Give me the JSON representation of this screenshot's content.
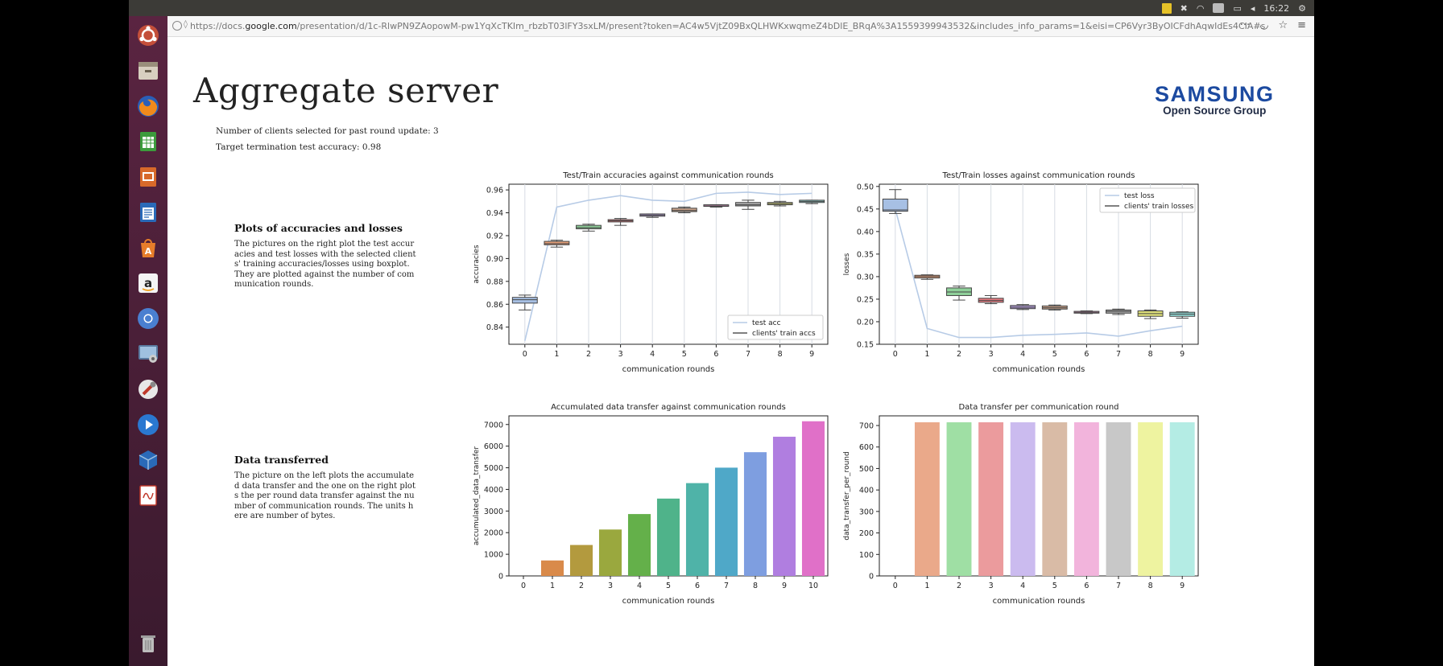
{
  "system": {
    "clock": "16:22"
  },
  "browser": {
    "url_prefix": "https://docs.",
    "url_domain": "google.com",
    "url_rest": "/presentation/d/1c-RlwPN9ZAopowM-pw1YqXcTKIm_rbzbT03lFY3sxLM/present?token=AC4w5VjtZ09BxQLHWKxwqmeZ4bDlE_BRqA%3A1559399943532&includes_info_params=1&eisi=CP6Vyr3ByOICFdhAqwIdEs4CIA#s"
  },
  "slide": {
    "title": "Aggregate server",
    "logo_brand": "SAMSUNG",
    "logo_sub": "Open Source Group",
    "info_line1": "Number of clients selected for past round update: 3",
    "info_line2": "Target termination test accuracy: 0.98",
    "section1_title": "Plots of accuracies and losses",
    "section1_body": [
      "The pictures on the right plot the test accur",
      "acies and test losses with the selected client",
      "s' training accuracies/losses using boxplot.",
      "They are plotted against the number of com",
      "munication rounds."
    ],
    "section2_title": "Data transferred",
    "section2_body": [
      "The picture on the left plots the accumulate",
      "d data transfer and the one on the right plot",
      "s the per round data transfer against the nu",
      "mber of communication rounds. The units h",
      "ere are number of bytes."
    ]
  },
  "chart_data": [
    {
      "type": "line",
      "title": "Test/Train accuracies against communication rounds",
      "xlabel": "communication rounds",
      "ylabel": "accuracies",
      "x": [
        0,
        1,
        2,
        3,
        4,
        5,
        6,
        7,
        8,
        9
      ],
      "ylim": [
        0.825,
        0.965
      ],
      "yticks": [
        0.84,
        0.86,
        0.88,
        0.9,
        0.92,
        0.94,
        0.96
      ],
      "ytick_labels": [
        "0.84",
        "0.86",
        "0.88",
        "0.90",
        "0.92",
        "0.94",
        "0.96"
      ],
      "legend": [
        "test acc",
        "clients' train accs"
      ],
      "legend_position": "lower-right",
      "series": [
        {
          "name": "test acc",
          "values": [
            0.828,
            0.945,
            0.951,
            0.955,
            0.951,
            0.95,
            0.957,
            0.958,
            0.956,
            0.957
          ]
        }
      ],
      "boxes": [
        {
          "q1": 0.861,
          "q3": 0.866,
          "med": 0.864,
          "lo": 0.855,
          "hi": 0.868,
          "color": "#a7c0e4"
        },
        {
          "q1": 0.912,
          "q3": 0.915,
          "med": 0.913,
          "lo": 0.91,
          "hi": 0.916,
          "color": "#e8a179"
        },
        {
          "q1": 0.926,
          "q3": 0.929,
          "med": 0.927,
          "lo": 0.924,
          "hi": 0.93,
          "color": "#8fd19a"
        },
        {
          "q1": 0.932,
          "q3": 0.934,
          "med": 0.933,
          "lo": 0.929,
          "hi": 0.935,
          "color": "#e57a80"
        },
        {
          "q1": 0.937,
          "q3": 0.939,
          "med": 0.938,
          "lo": 0.936,
          "hi": 0.939,
          "color": "#b39ddb"
        },
        {
          "q1": 0.941,
          "q3": 0.944,
          "med": 0.942,
          "lo": 0.94,
          "hi": 0.945,
          "color": "#c7a088"
        },
        {
          "q1": 0.946,
          "q3": 0.947,
          "med": 0.946,
          "lo": 0.945,
          "hi": 0.947,
          "color": "#f0a0cf"
        },
        {
          "q1": 0.946,
          "q3": 0.949,
          "med": 0.947,
          "lo": 0.943,
          "hi": 0.951,
          "color": "#aaaaaa"
        },
        {
          "q1": 0.947,
          "q3": 0.949,
          "med": 0.948,
          "lo": 0.946,
          "hi": 0.95,
          "color": "#dfe07a"
        },
        {
          "q1": 0.949,
          "q3": 0.951,
          "med": 0.95,
          "lo": 0.948,
          "hi": 0.951,
          "color": "#8fd8d4"
        }
      ]
    },
    {
      "type": "line",
      "title": "Test/Train losses against communication rounds",
      "xlabel": "communication rounds",
      "ylabel": "losses",
      "x": [
        0,
        1,
        2,
        3,
        4,
        5,
        6,
        7,
        8,
        9
      ],
      "ylim": [
        0.15,
        0.505
      ],
      "yticks": [
        0.15,
        0.2,
        0.25,
        0.3,
        0.35,
        0.4,
        0.45,
        0.5
      ],
      "ytick_labels": [
        "0.15",
        "0.20",
        "0.25",
        "0.30",
        "0.35",
        "0.40",
        "0.45",
        "0.50"
      ],
      "legend": [
        "test loss",
        "clients' train losses"
      ],
      "legend_position": "upper-right",
      "series": [
        {
          "name": "test loss",
          "values": [
            0.45,
            0.185,
            0.165,
            0.165,
            0.17,
            0.172,
            0.175,
            0.168,
            0.18,
            0.19
          ]
        }
      ],
      "boxes": [
        {
          "q1": 0.445,
          "q3": 0.472,
          "med": 0.448,
          "lo": 0.44,
          "hi": 0.493,
          "color": "#a7c0e4"
        },
        {
          "q1": 0.297,
          "q3": 0.303,
          "med": 0.3,
          "lo": 0.294,
          "hi": 0.304,
          "color": "#e8a179"
        },
        {
          "q1": 0.258,
          "q3": 0.275,
          "med": 0.266,
          "lo": 0.248,
          "hi": 0.279,
          "color": "#8fd19a"
        },
        {
          "q1": 0.243,
          "q3": 0.252,
          "med": 0.247,
          "lo": 0.24,
          "hi": 0.258,
          "color": "#e57a80"
        },
        {
          "q1": 0.229,
          "q3": 0.236,
          "med": 0.232,
          "lo": 0.227,
          "hi": 0.238,
          "color": "#b39ddb"
        },
        {
          "q1": 0.228,
          "q3": 0.235,
          "med": 0.231,
          "lo": 0.226,
          "hi": 0.237,
          "color": "#c7a088"
        },
        {
          "q1": 0.219,
          "q3": 0.223,
          "med": 0.221,
          "lo": 0.218,
          "hi": 0.224,
          "color": "#f0a0cf"
        },
        {
          "q1": 0.219,
          "q3": 0.226,
          "med": 0.223,
          "lo": 0.216,
          "hi": 0.228,
          "color": "#aaaaaa"
        },
        {
          "q1": 0.212,
          "q3": 0.224,
          "med": 0.218,
          "lo": 0.207,
          "hi": 0.226,
          "color": "#dfe07a"
        },
        {
          "q1": 0.212,
          "q3": 0.221,
          "med": 0.217,
          "lo": 0.208,
          "hi": 0.222,
          "color": "#8fd8d4"
        }
      ]
    },
    {
      "type": "bar",
      "title": "Accumulated data transfer against communication rounds",
      "xlabel": "communication rounds",
      "ylabel": "accumulated_data_transfer",
      "categories": [
        "0",
        "1",
        "2",
        "3",
        "4",
        "5",
        "6",
        "7",
        "8",
        "9",
        "10"
      ],
      "values": [
        0,
        715,
        1430,
        2145,
        2860,
        3575,
        4290,
        5005,
        5720,
        6435,
        7150
      ],
      "ylim": [
        0,
        7400
      ],
      "yticks": [
        0,
        1000,
        2000,
        3000,
        4000,
        5000,
        6000,
        7000
      ],
      "ytick_labels": [
        "0",
        "1000",
        "2000",
        "3000",
        "4000",
        "5000",
        "6000",
        "7000"
      ],
      "colors": [
        "#e57a73",
        "#d98a4a",
        "#b39a3e",
        "#9aa83e",
        "#64b04a",
        "#4fb38a",
        "#4fb3a8",
        "#4fa8c8",
        "#7e9ee0",
        "#b07ee0",
        "#e070c8"
      ]
    },
    {
      "type": "bar",
      "title": "Data transfer per communication round",
      "xlabel": "communication rounds",
      "ylabel": "data_transfer_per_round",
      "categories": [
        "0",
        "1",
        "2",
        "3",
        "4",
        "5",
        "6",
        "7",
        "8",
        "9"
      ],
      "values": [
        0,
        715,
        715,
        715,
        715,
        715,
        715,
        715,
        715,
        715
      ],
      "ylim": [
        0,
        745
      ],
      "yticks": [
        0,
        100,
        200,
        300,
        400,
        500,
        600,
        700
      ],
      "ytick_labels": [
        "0",
        "100",
        "200",
        "300",
        "400",
        "500",
        "600",
        "700"
      ],
      "colors": [
        "#a7c0e4",
        "#eaa98a",
        "#9fdfa4",
        "#eb9b9d",
        "#cbbbef",
        "#d9bba6",
        "#f2b4dc",
        "#c8c8c8",
        "#eef3a0",
        "#b4ece4"
      ]
    }
  ]
}
